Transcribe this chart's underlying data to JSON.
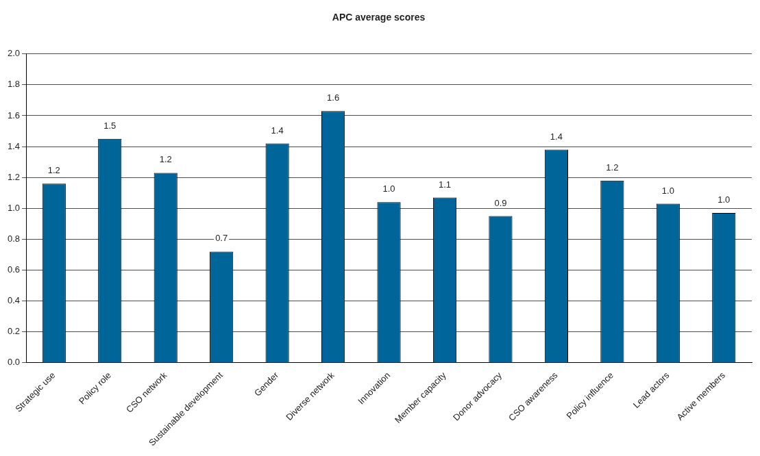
{
  "chart_data": {
    "type": "bar",
    "title": "APC average scores",
    "categories": [
      "Strategic use",
      "Policy role",
      "CSO network",
      "Sustainable development",
      "Gender",
      "Diverse network",
      "Innovation",
      "Member capacity",
      "Donor advocacy",
      "CSO awareness",
      "Policy influence",
      "Lead actors",
      "Active members"
    ],
    "values": [
      1.16,
      1.45,
      1.23,
      0.72,
      1.42,
      1.63,
      1.04,
      1.07,
      0.95,
      1.38,
      1.18,
      1.03,
      0.97
    ],
    "value_labels": [
      "1.2",
      "1.5",
      "1.2",
      "0.7",
      "1.4",
      "1.6",
      "1.0",
      "1.1",
      "0.9",
      "1.4",
      "1.2",
      "1.0",
      "1.0"
    ],
    "color": "#006699",
    "ylim": [
      0,
      2
    ],
    "yticks": [
      {
        "value": 0,
        "label": "0.0"
      },
      {
        "value": 0.2,
        "label": "0.2"
      },
      {
        "value": 0.4,
        "label": "0.4"
      },
      {
        "value": 0.6,
        "label": "0.6"
      },
      {
        "value": 0.8,
        "label": "0.8"
      },
      {
        "value": 1,
        "label": "1.0"
      },
      {
        "value": 1.2,
        "label": "1.2"
      },
      {
        "value": 1.4,
        "label": "1.4"
      },
      {
        "value": 1.6,
        "label": "1.6"
      },
      {
        "value": 1.8,
        "label": "1.8"
      },
      {
        "value": 2,
        "label": "2.0"
      }
    ],
    "grid": "y",
    "legend": false
  }
}
